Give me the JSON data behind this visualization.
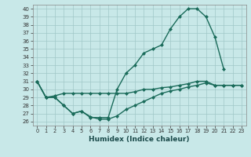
{
  "xlabel": "Humidex (Indice chaleur)",
  "bg_color": "#c8e8e8",
  "grid_color": "#a0c8c8",
  "line_color": "#1a6b5a",
  "marker": "D",
  "markersize": 2.5,
  "linewidth": 1.0,
  "ylim": [
    25.5,
    40.5
  ],
  "yticks": [
    26,
    27,
    28,
    29,
    30,
    31,
    32,
    33,
    34,
    35,
    36,
    37,
    38,
    39,
    40
  ],
  "xlim": [
    -0.5,
    23.5
  ],
  "curve_upper_x": [
    0,
    1,
    2,
    3,
    4,
    5,
    6,
    7,
    8,
    9,
    10,
    11,
    12,
    13,
    14,
    15,
    16,
    17,
    18,
    19,
    20,
    21
  ],
  "curve_upper_y": [
    31,
    29,
    29,
    28,
    27,
    27.3,
    26.5,
    26.5,
    26.5,
    30,
    32,
    33,
    34.5,
    35,
    35.5,
    37.5,
    39,
    40,
    40,
    39,
    36.5,
    32.5
  ],
  "curve_mid_x": [
    0,
    1,
    2,
    3,
    4,
    5,
    6,
    7,
    8,
    9,
    10,
    11,
    12,
    13,
    14,
    15,
    16,
    17,
    18,
    19,
    20,
    21,
    22,
    23
  ],
  "curve_mid_y": [
    31,
    29,
    29.2,
    29.5,
    29.5,
    29.5,
    29.5,
    29.5,
    29.5,
    29.5,
    29.5,
    29.7,
    30,
    30,
    30.2,
    30.3,
    30.5,
    30.7,
    31,
    31,
    30.5,
    30.5,
    30.5,
    30.5
  ],
  "curve_lower_x": [
    0,
    1,
    2,
    3,
    4,
    5,
    6,
    7,
    8,
    9,
    10,
    11,
    12,
    13,
    14,
    15,
    16,
    17,
    18,
    19,
    20,
    21,
    22,
    23
  ],
  "curve_lower_y": [
    31,
    29,
    29,
    28,
    27,
    27.3,
    26.6,
    26.3,
    26.3,
    26.7,
    27.5,
    28,
    28.5,
    29,
    29.5,
    29.8,
    30,
    30.3,
    30.5,
    30.8,
    30.5,
    30.5,
    30.5,
    30.5
  ]
}
